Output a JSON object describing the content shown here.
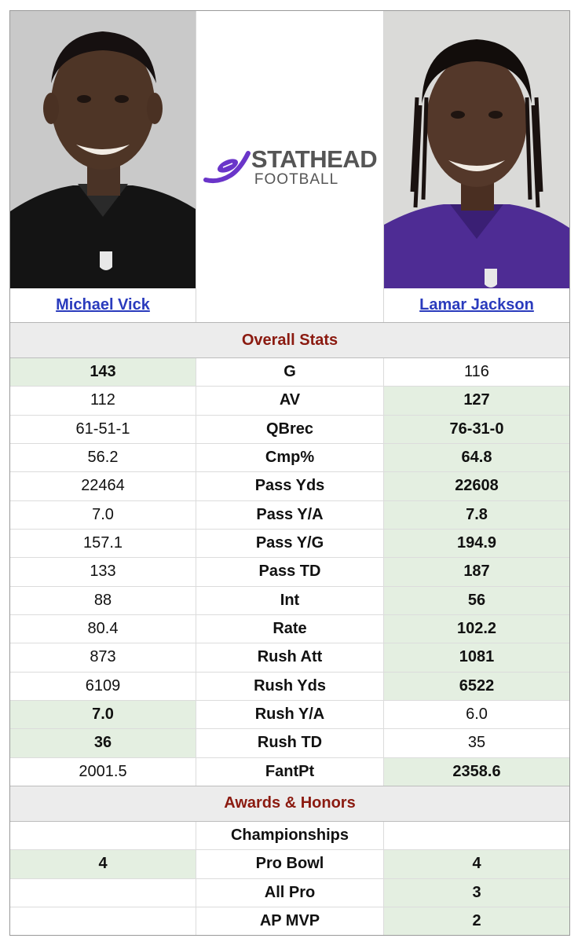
{
  "players": {
    "left": {
      "name": "Michael Vick"
    },
    "right": {
      "name": "Lamar Jackson"
    }
  },
  "logo": {
    "line1": "STATHEAD",
    "line2": "FOOTBALL",
    "accent": "#6a35c9"
  },
  "colors": {
    "section_text": "#8b1a10",
    "highlight": "#e4efe1",
    "link": "#2a3bbd"
  },
  "sections": [
    {
      "title": "Overall Stats",
      "rows": [
        {
          "label": "G",
          "left": "143",
          "right": "116",
          "winner": "left"
        },
        {
          "label": "AV",
          "left": "112",
          "right": "127",
          "winner": "right"
        },
        {
          "label": "QBrec",
          "left": "61-51-1",
          "right": "76-31-0",
          "winner": "right"
        },
        {
          "label": "Cmp%",
          "left": "56.2",
          "right": "64.8",
          "winner": "right"
        },
        {
          "label": "Pass Yds",
          "left": "22464",
          "right": "22608",
          "winner": "right"
        },
        {
          "label": "Pass Y/A",
          "left": "7.0",
          "right": "7.8",
          "winner": "right"
        },
        {
          "label": "Pass Y/G",
          "left": "157.1",
          "right": "194.9",
          "winner": "right"
        },
        {
          "label": "Pass TD",
          "left": "133",
          "right": "187",
          "winner": "right"
        },
        {
          "label": "Int",
          "left": "88",
          "right": "56",
          "winner": "right"
        },
        {
          "label": "Rate",
          "left": "80.4",
          "right": "102.2",
          "winner": "right"
        },
        {
          "label": "Rush Att",
          "left": "873",
          "right": "1081",
          "winner": "right"
        },
        {
          "label": "Rush Yds",
          "left": "6109",
          "right": "6522",
          "winner": "right"
        },
        {
          "label": "Rush Y/A",
          "left": "7.0",
          "right": "6.0",
          "winner": "left"
        },
        {
          "label": "Rush TD",
          "left": "36",
          "right": "35",
          "winner": "left"
        },
        {
          "label": "FantPt",
          "left": "2001.5",
          "right": "2358.6",
          "winner": "right"
        }
      ]
    },
    {
      "title": "Awards & Honors",
      "rows": [
        {
          "label": "Championships",
          "left": "",
          "right": "",
          "winner": "none"
        },
        {
          "label": "Pro Bowl",
          "left": "4",
          "right": "4",
          "winner": "both"
        },
        {
          "label": "All Pro",
          "left": "",
          "right": "3",
          "winner": "right"
        },
        {
          "label": "AP MVP",
          "left": "",
          "right": "2",
          "winner": "right"
        }
      ]
    }
  ]
}
